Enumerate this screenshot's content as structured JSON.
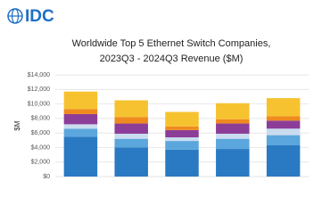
{
  "logo": "IDC",
  "chart_data": {
    "type": "stacked-bar",
    "title": [
      "Worldwide Top 5 Ethernet Switch Companies,",
      "2023Q3 - 2024Q3 Revenue ($M)"
    ],
    "y_label": "$M",
    "categories": [
      null,
      null,
      null,
      null,
      null
    ],
    "series": [
      {
        "color": "#2a7ac3",
        "values": [
          5500,
          4000,
          3700,
          3800,
          4300
        ]
      },
      {
        "color": "#5ba6dc",
        "values": [
          1100,
          1200,
          1200,
          1400,
          1400
        ]
      },
      {
        "color": "#c9dcef",
        "values": [
          600,
          700,
          500,
          700,
          900
        ]
      },
      {
        "color": "#8c3d98",
        "values": [
          1400,
          1400,
          1000,
          1400,
          1100
        ]
      },
      {
        "color": "#ef8a1f",
        "values": [
          700,
          900,
          500,
          600,
          600
        ]
      },
      {
        "color": "#f6c22f",
        "values": [
          2400,
          2300,
          2000,
          2200,
          2500
        ]
      }
    ],
    "ylim": [
      0,
      14000
    ],
    "yticks": [
      {
        "value": 0,
        "label": "$0"
      },
      {
        "value": 2000,
        "label": "$2,000"
      },
      {
        "value": 4000,
        "label": "$4,000"
      },
      {
        "value": 6000,
        "label": "$6,000"
      },
      {
        "value": 8000,
        "label": "$8,000"
      },
      {
        "value": 10000,
        "label": "$10,000"
      },
      {
        "value": 12000,
        "label": "$12,000"
      },
      {
        "value": 14000,
        "label": "$14,000"
      }
    ],
    "grid": true
  }
}
